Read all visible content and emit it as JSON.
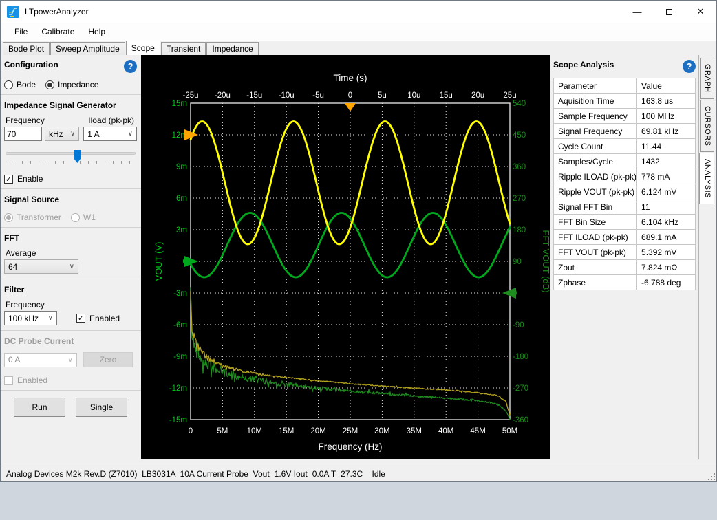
{
  "window": {
    "title": "LTpowerAnalyzer"
  },
  "menu": {
    "items": [
      "File",
      "Calibrate",
      "Help"
    ]
  },
  "tabs": {
    "items": [
      "Bode Plot",
      "Sweep Amplitude",
      "Scope",
      "Transient",
      "Impedance"
    ],
    "active": "Scope"
  },
  "sidebar": {
    "config": {
      "title": "Configuration",
      "options": [
        {
          "label": "Bode",
          "selected": false,
          "disabled": false
        },
        {
          "label": "Impedance",
          "selected": true,
          "disabled": false
        }
      ]
    },
    "generator": {
      "title": "Impedance Signal Generator",
      "frequency_label": "Frequency",
      "frequency_value": "70",
      "frequency_unit": "kHz",
      "iload_label": "Iload (pk-pk)",
      "iload_value": "1 A",
      "slider_percent": 55,
      "enable_label": "Enable",
      "enable_checked": true
    },
    "signal_source": {
      "title": "Signal Source",
      "options": [
        {
          "label": "Transformer",
          "selected": true,
          "disabled": true
        },
        {
          "label": "W1",
          "selected": false,
          "disabled": true
        }
      ]
    },
    "fft": {
      "title": "FFT",
      "average_label": "Average",
      "average_value": "64"
    },
    "filter": {
      "title": "Filter",
      "frequency_label": "Frequency",
      "frequency_value": "100 kHz",
      "enabled_label": "Enabled",
      "enabled_checked": true
    },
    "dc_probe": {
      "title": "DC Probe Current",
      "value": "0 A",
      "zero_label": "Zero",
      "enabled_label": "Enabled",
      "enabled_checked": false,
      "disabled": true
    },
    "actions": {
      "run_label": "Run",
      "single_label": "Single"
    }
  },
  "analysis": {
    "title": "Scope Analysis",
    "columns": [
      "Parameter",
      "Value"
    ],
    "rows": [
      [
        "Aquisition Time",
        "163.8 us"
      ],
      [
        "Sample Frequency",
        "100 MHz"
      ],
      [
        "Signal Frequency",
        "69.81 kHz"
      ],
      [
        "Cycle Count",
        "11.44"
      ],
      [
        "Samples/Cycle",
        "1432"
      ],
      [
        "Ripple ILOAD (pk-pk)",
        "778 mA"
      ],
      [
        "Ripple VOUT (pk-pk)",
        "6.124 mV"
      ],
      [
        "Signal FFT Bin",
        "11"
      ],
      [
        "FFT Bin Size",
        "6.104 kHz"
      ],
      [
        "FFT ILOAD (pk-pk)",
        "689.1 mA"
      ],
      [
        "FFT VOUT (pk-pk)",
        "5.392 mV"
      ],
      [
        "Zout",
        "7.824 mΩ"
      ],
      [
        "Zphase",
        "-6.788 deg"
      ]
    ]
  },
  "side_tabs": {
    "items": [
      "GRAPH",
      "CURSORS",
      "ANALYSIS"
    ],
    "active": "ANALYSIS"
  },
  "status": {
    "text": "Analog Devices M2k Rev.D (Z7010)  LB3031A  10A Current Probe  Vout=1.6V Iout=0.0A T=27.3C    Idle"
  },
  "chart_data": {
    "type": "line",
    "background": "#000000",
    "grid": "dotted-white",
    "top_axis": {
      "title": "Time (s)",
      "tick_labels": [
        "-25u",
        "-20u",
        "-15u",
        "-10u",
        "-5u",
        "0",
        "5u",
        "10u",
        "15u",
        "20u",
        "25u"
      ],
      "range_us": [
        -25,
        25
      ],
      "color": "#ffffff"
    },
    "bottom_axis": {
      "title": "Frequency (Hz)",
      "tick_labels": [
        "0",
        "5M",
        "10M",
        "15M",
        "20M",
        "25M",
        "30M",
        "35M",
        "40M",
        "45M",
        "50M"
      ],
      "range_mhz": [
        0,
        50
      ],
      "color": "#ffffff"
    },
    "left_axis": {
      "title": "VOUT (V)",
      "tick_labels": [
        "15m",
        "12m",
        "9m",
        "6m",
        "3m",
        "0",
        "-3m",
        "-6m",
        "-9m",
        "-12m",
        "-15m"
      ],
      "range_mv": [
        15,
        -15
      ],
      "color": "#00c81e"
    },
    "right_axis": {
      "title": "FFT VOUT (dB)",
      "tick_labels": [
        "540",
        "450",
        "360",
        "270",
        "180",
        "90",
        "0",
        "-90",
        "-180",
        "-270",
        "-360"
      ],
      "range_db": [
        540,
        -360
      ],
      "color": "#1a8a1a"
    },
    "series": [
      {
        "name": "FFT VOUT",
        "kind": "fft",
        "color": "#1e8c1e",
        "stroke": 1.3,
        "noise_mv": 0.6,
        "noise_decay_mhz": 14,
        "anchors_mhz": [
          0,
          0.15,
          0.5,
          1,
          2,
          3,
          5,
          8,
          12,
          18,
          25,
          32,
          40,
          45,
          48,
          49.4,
          50
        ],
        "anchors_mv": [
          -2.6,
          -6.6,
          -7.8,
          -8.6,
          -9.4,
          -9.9,
          -10.5,
          -11.0,
          -11.4,
          -11.9,
          -12.3,
          -12.65,
          -12.95,
          -13.2,
          -13.5,
          -14.2,
          -15.0
        ]
      },
      {
        "name": "FFT ILOAD",
        "kind": "fft",
        "color": "#b4a41e",
        "stroke": 1.3,
        "noise_mv": 0.5,
        "noise_decay_mhz": 4,
        "anchors_mhz": [
          0,
          0.15,
          0.5,
          1,
          2,
          3,
          5,
          8,
          12,
          18,
          25,
          32,
          40,
          45,
          48,
          49.4,
          50
        ],
        "anchors_mv": [
          -2.6,
          -6.0,
          -7.2,
          -8.0,
          -8.8,
          -9.3,
          -9.9,
          -10.4,
          -10.8,
          -11.2,
          -11.6,
          -11.9,
          -12.2,
          -12.45,
          -12.7,
          -13.3,
          -14.6
        ]
      },
      {
        "name": "VOUT time trace",
        "kind": "sine",
        "color": "#00a81e",
        "stroke": 2.8,
        "center_mv": 1.55,
        "amplitude_mv": 3.05,
        "period_us": 14.32,
        "peak_time_us": -15.7
      },
      {
        "name": "ILOAD time trace",
        "kind": "sine",
        "color": "#ffff00",
        "stroke": 2.8,
        "center_mv": 7.45,
        "amplitude_mv": 5.82,
        "period_us": 14.32,
        "peak_time_us": -23.2
      }
    ],
    "markers": [
      {
        "name": "trigger-marker",
        "edge": "top",
        "us": 0,
        "label": "t=0",
        "color": "#ffa500"
      },
      {
        "name": "iload-ref-marker",
        "edge": "left",
        "mv": 12,
        "label": "12m",
        "color": "#ffa500"
      },
      {
        "name": "vout-ref-marker",
        "edge": "left",
        "mv": 0,
        "label": "0",
        "color": "#00a81e"
      },
      {
        "name": "fft-ref-marker",
        "edge": "right",
        "db": 0,
        "label": "0 dB",
        "color": "#1e8c1e"
      }
    ]
  }
}
